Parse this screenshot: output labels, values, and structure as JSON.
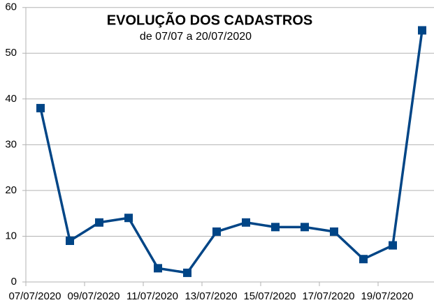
{
  "chart_data": {
    "type": "line",
    "title": "EVOLUÇÃO DOS CADASTROS",
    "subtitle": "de 07/07 a 20/07/2020",
    "categories": [
      "07/07/2020",
      null,
      "09/07/2020",
      null,
      "11/07/2020",
      null,
      "13/07/2020",
      null,
      "15/07/2020",
      null,
      "17/07/2020",
      null,
      "19/07/2020",
      null
    ],
    "series": [
      {
        "name": null,
        "color": "#004586",
        "values": [
          38,
          9,
          13,
          14,
          3,
          2,
          11,
          13,
          12,
          12,
          11,
          5,
          8,
          55
        ]
      }
    ],
    "ylim": [
      0,
      60
    ],
    "yticks": [
      0,
      10,
      20,
      30,
      40,
      50,
      60
    ],
    "grid": true,
    "legend": false
  }
}
